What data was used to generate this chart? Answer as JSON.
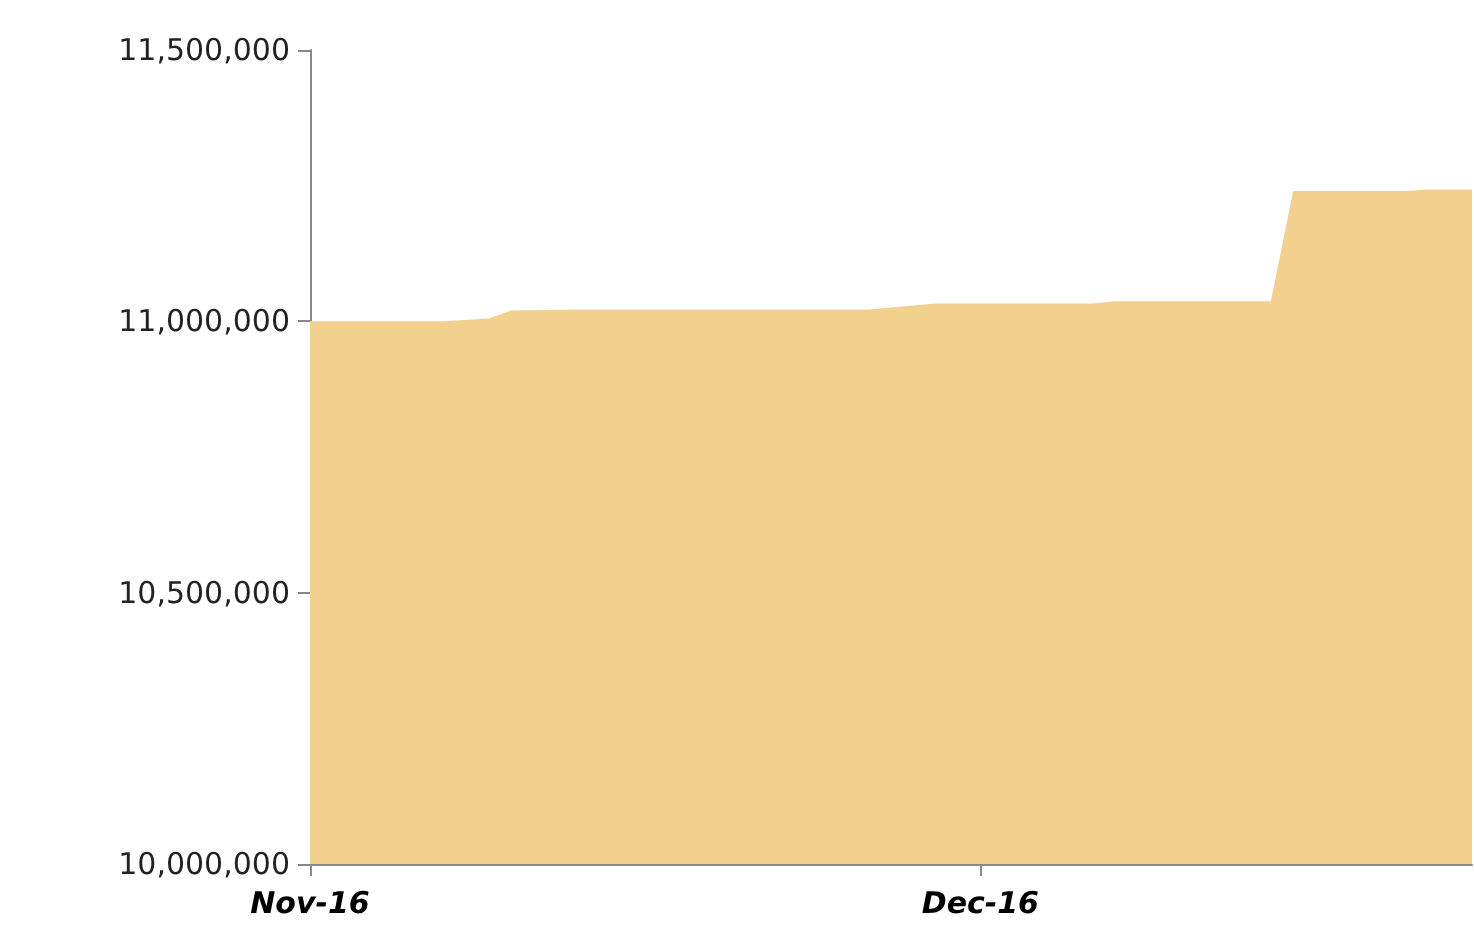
{
  "chart_data": {
    "type": "area",
    "x": [
      "2016-11-01",
      "2016-11-07",
      "2016-11-09",
      "2016-11-10",
      "2016-11-13",
      "2016-11-26",
      "2016-11-29",
      "2016-12-06",
      "2016-12-07",
      "2016-12-14",
      "2016-12-15",
      "2016-12-20",
      "2016-12-21",
      "2016-12-23"
    ],
    "series": [
      {
        "color": "#f2d08d",
        "values": [
          11000000,
          11000000,
          11005000,
          11020000,
          11022000,
          11022000,
          11033000,
          11033000,
          11037000,
          11037000,
          11240000,
          11240000,
          11243000,
          11243000
        ]
      }
    ],
    "xlim": [
      "2016-11-01",
      "2016-12-23"
    ],
    "xticks": [
      {
        "value": "2016-11-01",
        "label": "Nov-16"
      },
      {
        "value": "2016-12-01",
        "label": "Dec-16"
      }
    ],
    "ylim": [
      10000000,
      11500000
    ],
    "yticks": [
      {
        "value": 10000000,
        "label": "10,000,000"
      },
      {
        "value": 10500000,
        "label": "10,500,000"
      },
      {
        "value": 11000000,
        "label": "11,000,000"
      },
      {
        "value": 11500000,
        "label": "11,500,000"
      }
    ],
    "grid": false,
    "marker": "none"
  }
}
